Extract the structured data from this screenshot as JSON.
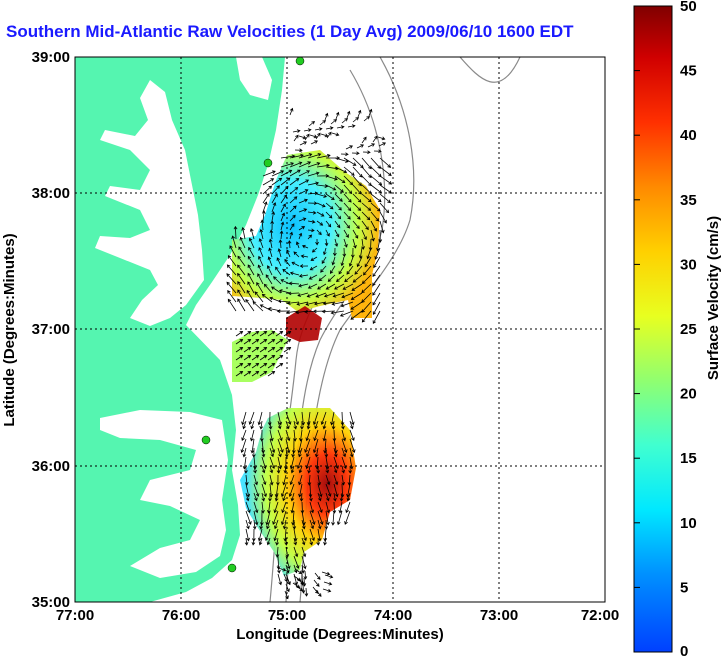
{
  "title": "Southern Mid-Atlantic Raw Velocities (1 Day Avg) 2009/06/10 1600 EDT",
  "map": {
    "xlabel": "Longitude (Degrees:Minutes)",
    "ylabel": "Latitude (Degrees:Minutes)",
    "lon_range": [
      -77,
      -72
    ],
    "lat_range": [
      35,
      39
    ],
    "lon_ticks": [
      "77:00",
      "76:00",
      "75:00",
      "74:00",
      "73:00",
      "72:00"
    ],
    "lat_ticks": [
      "39:00",
      "38:00",
      "37:00",
      "36:00",
      "35:00"
    ],
    "grid": "dotted",
    "land_color": "#55f5b0",
    "water_color": "#ffffff",
    "bathymetry_color": "#8a8a8a",
    "station_color": "#22cc22",
    "arrow_color": "#000000"
  },
  "colorbar": {
    "label": "Surface Velocity (cm/s)",
    "min": 0,
    "max": 50,
    "ticks": [
      "0",
      "5",
      "10",
      "15",
      "20",
      "25",
      "30",
      "35",
      "40",
      "45",
      "50"
    ],
    "colormap": "jet"
  }
}
